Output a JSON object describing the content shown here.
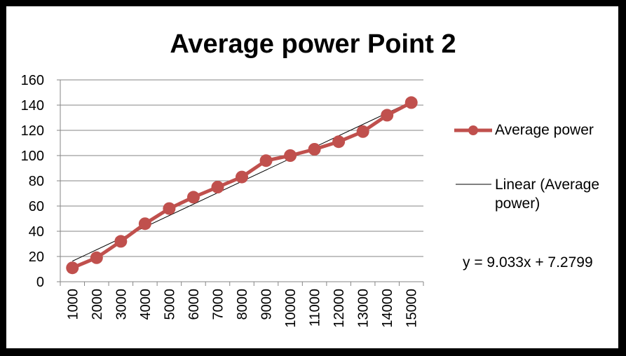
{
  "chart_data": {
    "type": "line",
    "title": "Average power Point 2",
    "categories": [
      "1000",
      "2000",
      "3000",
      "4000",
      "5000",
      "6000",
      "7000",
      "8000",
      "9000",
      "10000",
      "11000",
      "12000",
      "13000",
      "14000",
      "15000"
    ],
    "series": [
      {
        "name": "Average power",
        "values": [
          11,
          19,
          32,
          46,
          58,
          67,
          75,
          83,
          96,
          100,
          105,
          111,
          119,
          132,
          142
        ],
        "color": "#c0504d"
      }
    ],
    "trendline": {
      "name": "Linear (Average power)",
      "slope": 9.033,
      "intercept": 7.2799,
      "equation": "y = 9.033x + 7.2799",
      "color": "#000000"
    },
    "ylim": [
      0,
      160
    ],
    "yticks": [
      "0",
      "20",
      "40",
      "60",
      "80",
      "100",
      "120",
      "140",
      "160"
    ],
    "grid": true,
    "legend": "right",
    "xlabel": "",
    "ylabel": ""
  }
}
